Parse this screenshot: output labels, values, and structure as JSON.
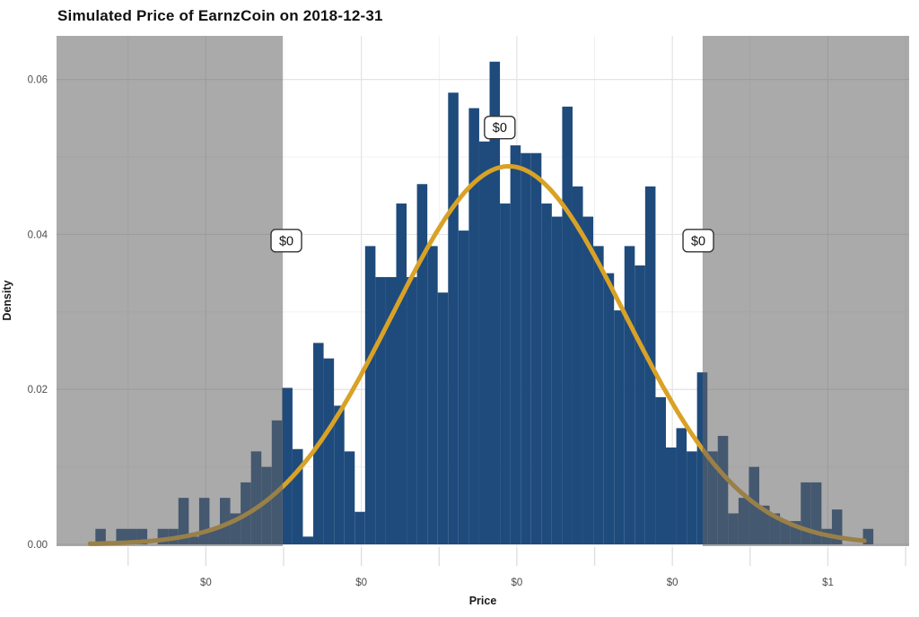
{
  "chart_data": {
    "type": "bar",
    "subtype": "histogram-with-density-curve",
    "title": "Simulated Price of EarnzCoin on 2018-12-31",
    "xlabel": "Price",
    "ylabel": "Density",
    "x_domain": [
      0.008,
      1.1045
    ],
    "y_domain": [
      -0.00023,
      0.06563
    ],
    "grid": "on",
    "x_major_ticks": [
      {
        "value": 0.2,
        "label": "$0"
      },
      {
        "value": 0.4,
        "label": "$0"
      },
      {
        "value": 0.6,
        "label": "$0"
      },
      {
        "value": 0.8,
        "label": "$0"
      },
      {
        "value": 1.0,
        "label": "$1"
      }
    ],
    "x_minor_ticks": [
      0.1,
      0.3,
      0.5,
      0.7,
      0.9,
      1.1
    ],
    "y_major_ticks": [
      {
        "value": 0.0,
        "label": "0.00"
      },
      {
        "value": 0.02,
        "label": "0.02"
      },
      {
        "value": 0.04,
        "label": "0.04"
      },
      {
        "value": 0.06,
        "label": "0.06"
      }
    ],
    "y_minor_ticks": [
      0.01,
      0.03,
      0.05
    ],
    "histogram": {
      "bin_start": 0.058,
      "bin_width": 0.01334,
      "densities": [
        0.002,
        0,
        0.002,
        0.002,
        0.002,
        0,
        0.002,
        0.002,
        0.006,
        0.001,
        0.006,
        0.002,
        0.006,
        0.004,
        0.008,
        0.012,
        0.01,
        0.016,
        0.0202,
        0.0123,
        0.001,
        0.026,
        0.024,
        0.0179,
        0.012,
        0.0042,
        0.0385,
        0.0345,
        0.0345,
        0.044,
        0.0345,
        0.0465,
        0.0385,
        0.0325,
        0.0583,
        0.0405,
        0.0563,
        0.052,
        0.0623,
        0.044,
        0.0515,
        0.0505,
        0.0505,
        0.044,
        0.0423,
        0.0565,
        0.0462,
        0.0423,
        0.0385,
        0.035,
        0.0302,
        0.0385,
        0.036,
        0.0462,
        0.019,
        0.0125,
        0.015,
        0.012,
        0.0222,
        0.012,
        0.014,
        0.004,
        0.006,
        0.01,
        0.005,
        0.004,
        0.003,
        0.003,
        0.008,
        0.008,
        0.002,
        0.0045,
        0,
        0,
        0.002
      ]
    },
    "density_curve": {
      "shape": "normal",
      "mean": 0.5896,
      "sd": 0.15,
      "peak_density": 0.0488,
      "draw_range": [
        0.051,
        1.049
      ]
    },
    "shaded_regions": [
      {
        "from": 0.008,
        "to": 0.2989
      },
      {
        "from": 0.8389,
        "to": 1.1045
      }
    ],
    "annotations": [
      {
        "label": "$0",
        "x": 0.3035,
        "y": 0.0392
      },
      {
        "label": "$0",
        "x": 0.578,
        "y": 0.0538
      },
      {
        "label": "$0",
        "x": 0.8333,
        "y": 0.0392
      }
    ]
  },
  "colors": {
    "bar_fill": "#1e4b7c",
    "curve": "#d9a226",
    "shade_overlay": "rgba(100,100,100,0.55)",
    "grid_major": "#e3e3e3",
    "grid_minor": "#f0f0f0",
    "axis_tick": "#dedede",
    "tick_label": "#4d4d4d",
    "annotation_border": "#333333",
    "annotation_bg": "#ffffff",
    "annotation_text": "#111111",
    "panel_bg": "#ffffff"
  }
}
